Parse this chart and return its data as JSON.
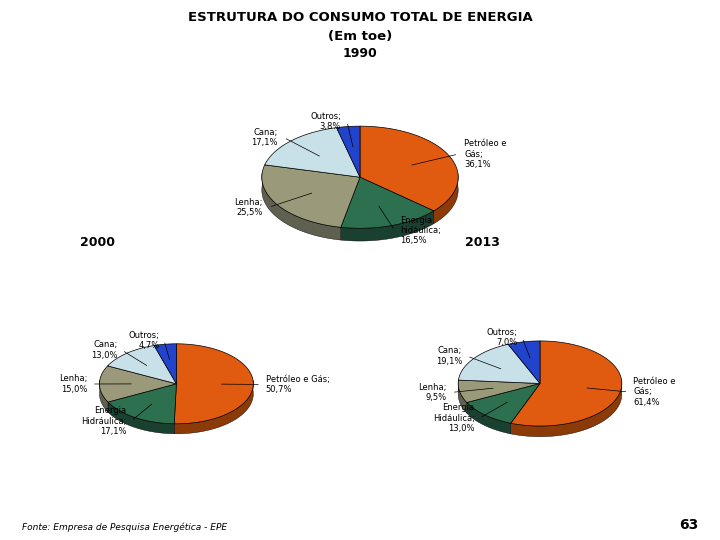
{
  "title_line1": "ESTRUTURA DO CONSUMO TOTAL DE ENERGIA",
  "title_line2": "(Em toe)",
  "footer": "Fonte: Empresa de Pesquisa Energética - EPE",
  "page_number": "63",
  "pie1990": {
    "year": "1990",
    "slices": [
      {
        "label": "Petróleo e\nGás;",
        "pct": "36,1%",
        "value": 36.1,
        "color": "#E05A10",
        "dark": "#8B3A08"
      },
      {
        "label": "Energia\nhidáulica;",
        "pct": "16,5%",
        "value": 16.5,
        "color": "#2D7050",
        "dark": "#1A4030"
      },
      {
        "label": "Lenha;",
        "pct": "25,5%",
        "value": 25.5,
        "color": "#9A9A7A",
        "dark": "#606050"
      },
      {
        "label": "Cana;",
        "pct": "17,1%",
        "value": 17.1,
        "color": "#C8E0E8",
        "dark": "#8090A0"
      },
      {
        "label": "Outros;",
        "pct": "3,8%",
        "value": 3.8,
        "color": "#2244CC",
        "dark": "#102080"
      }
    ],
    "startangle": 90,
    "label_pct_bold": false
  },
  "pie2000": {
    "year": "2000",
    "slices": [
      {
        "label": "Petróleo e Gás;",
        "pct": "50,7%",
        "value": 50.7,
        "color": "#E05A10",
        "dark": "#8B3A08"
      },
      {
        "label": "Energia\nHidráulica;",
        "pct": "17,1%",
        "value": 17.1,
        "color": "#2D7050",
        "dark": "#1A4030"
      },
      {
        "label": "Lenha;",
        "pct": "15,0%",
        "value": 15.0,
        "color": "#9A9A7A",
        "dark": "#606050"
      },
      {
        "label": "Cana;",
        "pct": "13,0%",
        "value": 13.0,
        "color": "#C8E0E8",
        "dark": "#8090A0"
      },
      {
        "label": "Outros;",
        "pct": "4,7%",
        "value": 4.7,
        "color": "#2244CC",
        "dark": "#102080"
      }
    ],
    "startangle": 90,
    "label_pct_bold": true
  },
  "pie2013": {
    "year": "2013",
    "slices": [
      {
        "label": "Petróleo e\nGás;",
        "pct": "61,4%",
        "value": 61.4,
        "color": "#E05A10",
        "dark": "#8B3A08"
      },
      {
        "label": "Energia\nHidáulica;",
        "pct": "13,0%",
        "value": 13.0,
        "color": "#2D7050",
        "dark": "#1A4030"
      },
      {
        "label": "Lenha;",
        "pct": "9,5%",
        "value": 9.5,
        "color": "#9A9A7A",
        "dark": "#606050"
      },
      {
        "label": "Cana;",
        "pct": "19,1%",
        "value": 19.1,
        "color": "#C8E0E8",
        "dark": "#8090A0"
      },
      {
        "label": "Outros;",
        "pct": "7,0%",
        "value": 7.0,
        "color": "#2244CC",
        "dark": "#102080"
      }
    ],
    "startangle": 90,
    "label_pct_bold": true
  },
  "bg_color": "#FFFFFF",
  "title_fontsize": 9.5,
  "label_fontsize": 6.0,
  "year_fontsize": 9,
  "footer_fontsize": 6.5
}
